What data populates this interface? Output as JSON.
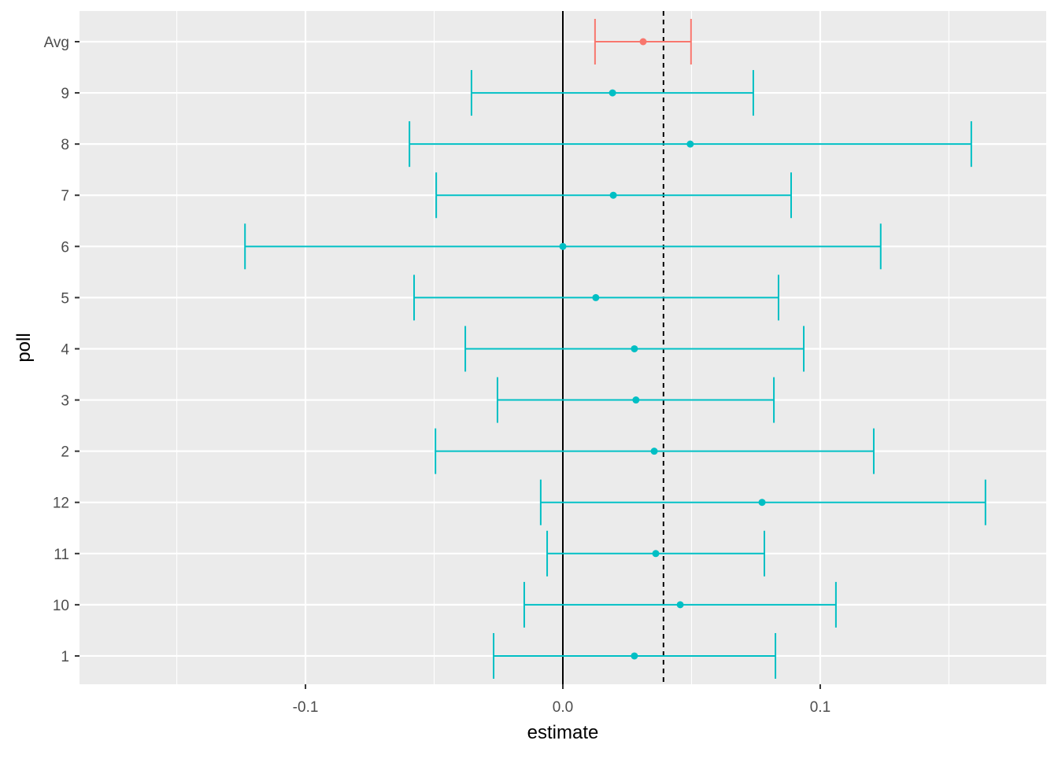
{
  "chart_data": {
    "type": "errorbar",
    "title": "",
    "xlabel": "estimate",
    "ylabel": "poll",
    "xlim": [
      -0.1878,
      0.1878
    ],
    "x_ticks": [
      -0.1,
      0.0,
      0.1
    ],
    "x_tick_labels": [
      "-0.1",
      "0.0",
      "0.1"
    ],
    "x_minor_gridlines": [
      -0.15,
      -0.05,
      0.05,
      0.15
    ],
    "grid": true,
    "reference_lines": [
      {
        "x": 0.0,
        "style": "solid",
        "color": "#000000"
      },
      {
        "x": 0.0391,
        "style": "dashed",
        "color": "#000000"
      }
    ],
    "colors": {
      "avg": "#F8766D",
      "poll": "#00BFC4",
      "panel": "#EBEBEB",
      "grid": "#FFFFFF"
    },
    "categories": [
      "Avg",
      "9",
      "8",
      "7",
      "6",
      "5",
      "4",
      "3",
      "2",
      "12",
      "11",
      "10",
      "1"
    ],
    "points": [
      {
        "label": "Avg",
        "group": "avg",
        "estimate": 0.0312,
        "lower": 0.0125,
        "upper": 0.0498
      },
      {
        "label": "9",
        "group": "poll",
        "estimate": 0.0193,
        "lower": -0.0355,
        "upper": 0.074
      },
      {
        "label": "8",
        "group": "poll",
        "estimate": 0.0495,
        "lower": -0.0596,
        "upper": 0.1587
      },
      {
        "label": "7",
        "group": "poll",
        "estimate": 0.0196,
        "lower": -0.0492,
        "upper": 0.0887
      },
      {
        "label": "6",
        "group": "poll",
        "estimate": 0.0,
        "lower": -0.1235,
        "upper": 0.1235
      },
      {
        "label": "5",
        "group": "poll",
        "estimate": 0.0128,
        "lower": -0.0578,
        "upper": 0.0838
      },
      {
        "label": "4",
        "group": "poll",
        "estimate": 0.0278,
        "lower": -0.0379,
        "upper": 0.0936
      },
      {
        "label": "3",
        "group": "poll",
        "estimate": 0.0284,
        "lower": -0.0254,
        "upper": 0.082
      },
      {
        "label": "2",
        "group": "poll",
        "estimate": 0.0355,
        "lower": -0.0495,
        "upper": 0.1208
      },
      {
        "label": "12",
        "group": "poll",
        "estimate": 0.0774,
        "lower": -0.0086,
        "upper": 0.1642
      },
      {
        "label": "11",
        "group": "poll",
        "estimate": 0.0361,
        "lower": -0.0061,
        "upper": 0.0783
      },
      {
        "label": "10",
        "group": "poll",
        "estimate": 0.0456,
        "lower": -0.015,
        "upper": 0.1061
      },
      {
        "label": "1",
        "group": "poll",
        "estimate": 0.0278,
        "lower": -0.0269,
        "upper": 0.0826
      }
    ]
  }
}
